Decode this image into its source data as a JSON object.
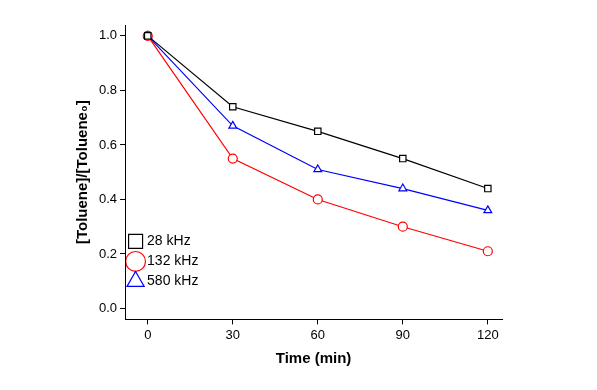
{
  "chart_data": {
    "type": "line",
    "x_label": "Time (min)",
    "y_label": "[Toluene]/[Toluene₀]",
    "x": [
      0,
      30,
      60,
      90,
      120
    ],
    "series": [
      {
        "name": "28 kHz",
        "color": "#000000",
        "marker": "square",
        "values": [
          1.0,
          0.74,
          0.65,
          0.55,
          0.44
        ]
      },
      {
        "name": "132 kHz",
        "color": "#ff0000",
        "marker": "circle",
        "values": [
          1.0,
          0.55,
          0.4,
          0.3,
          0.21
        ]
      },
      {
        "name": "580 kHz",
        "color": "#0000ff",
        "marker": "triangle",
        "values": [
          1.0,
          0.67,
          0.51,
          0.44,
          0.36
        ]
      }
    ],
    "xlim": [
      -8,
      125
    ],
    "xticks": [
      0,
      30,
      60,
      90,
      120
    ],
    "ylim": [
      -0.04,
      1.04
    ],
    "yticks": [
      {
        "value": 0,
        "label": "0.0"
      },
      {
        "value": 0.2,
        "label": "0.2"
      },
      {
        "value": 0.4,
        "label": "0.4"
      },
      {
        "value": 0.6,
        "label": "0.6"
      },
      {
        "value": 0.8,
        "label": "0.8"
      },
      {
        "value": 1.0,
        "label": "1.0"
      }
    ],
    "grid": false,
    "legend": "upper right"
  }
}
